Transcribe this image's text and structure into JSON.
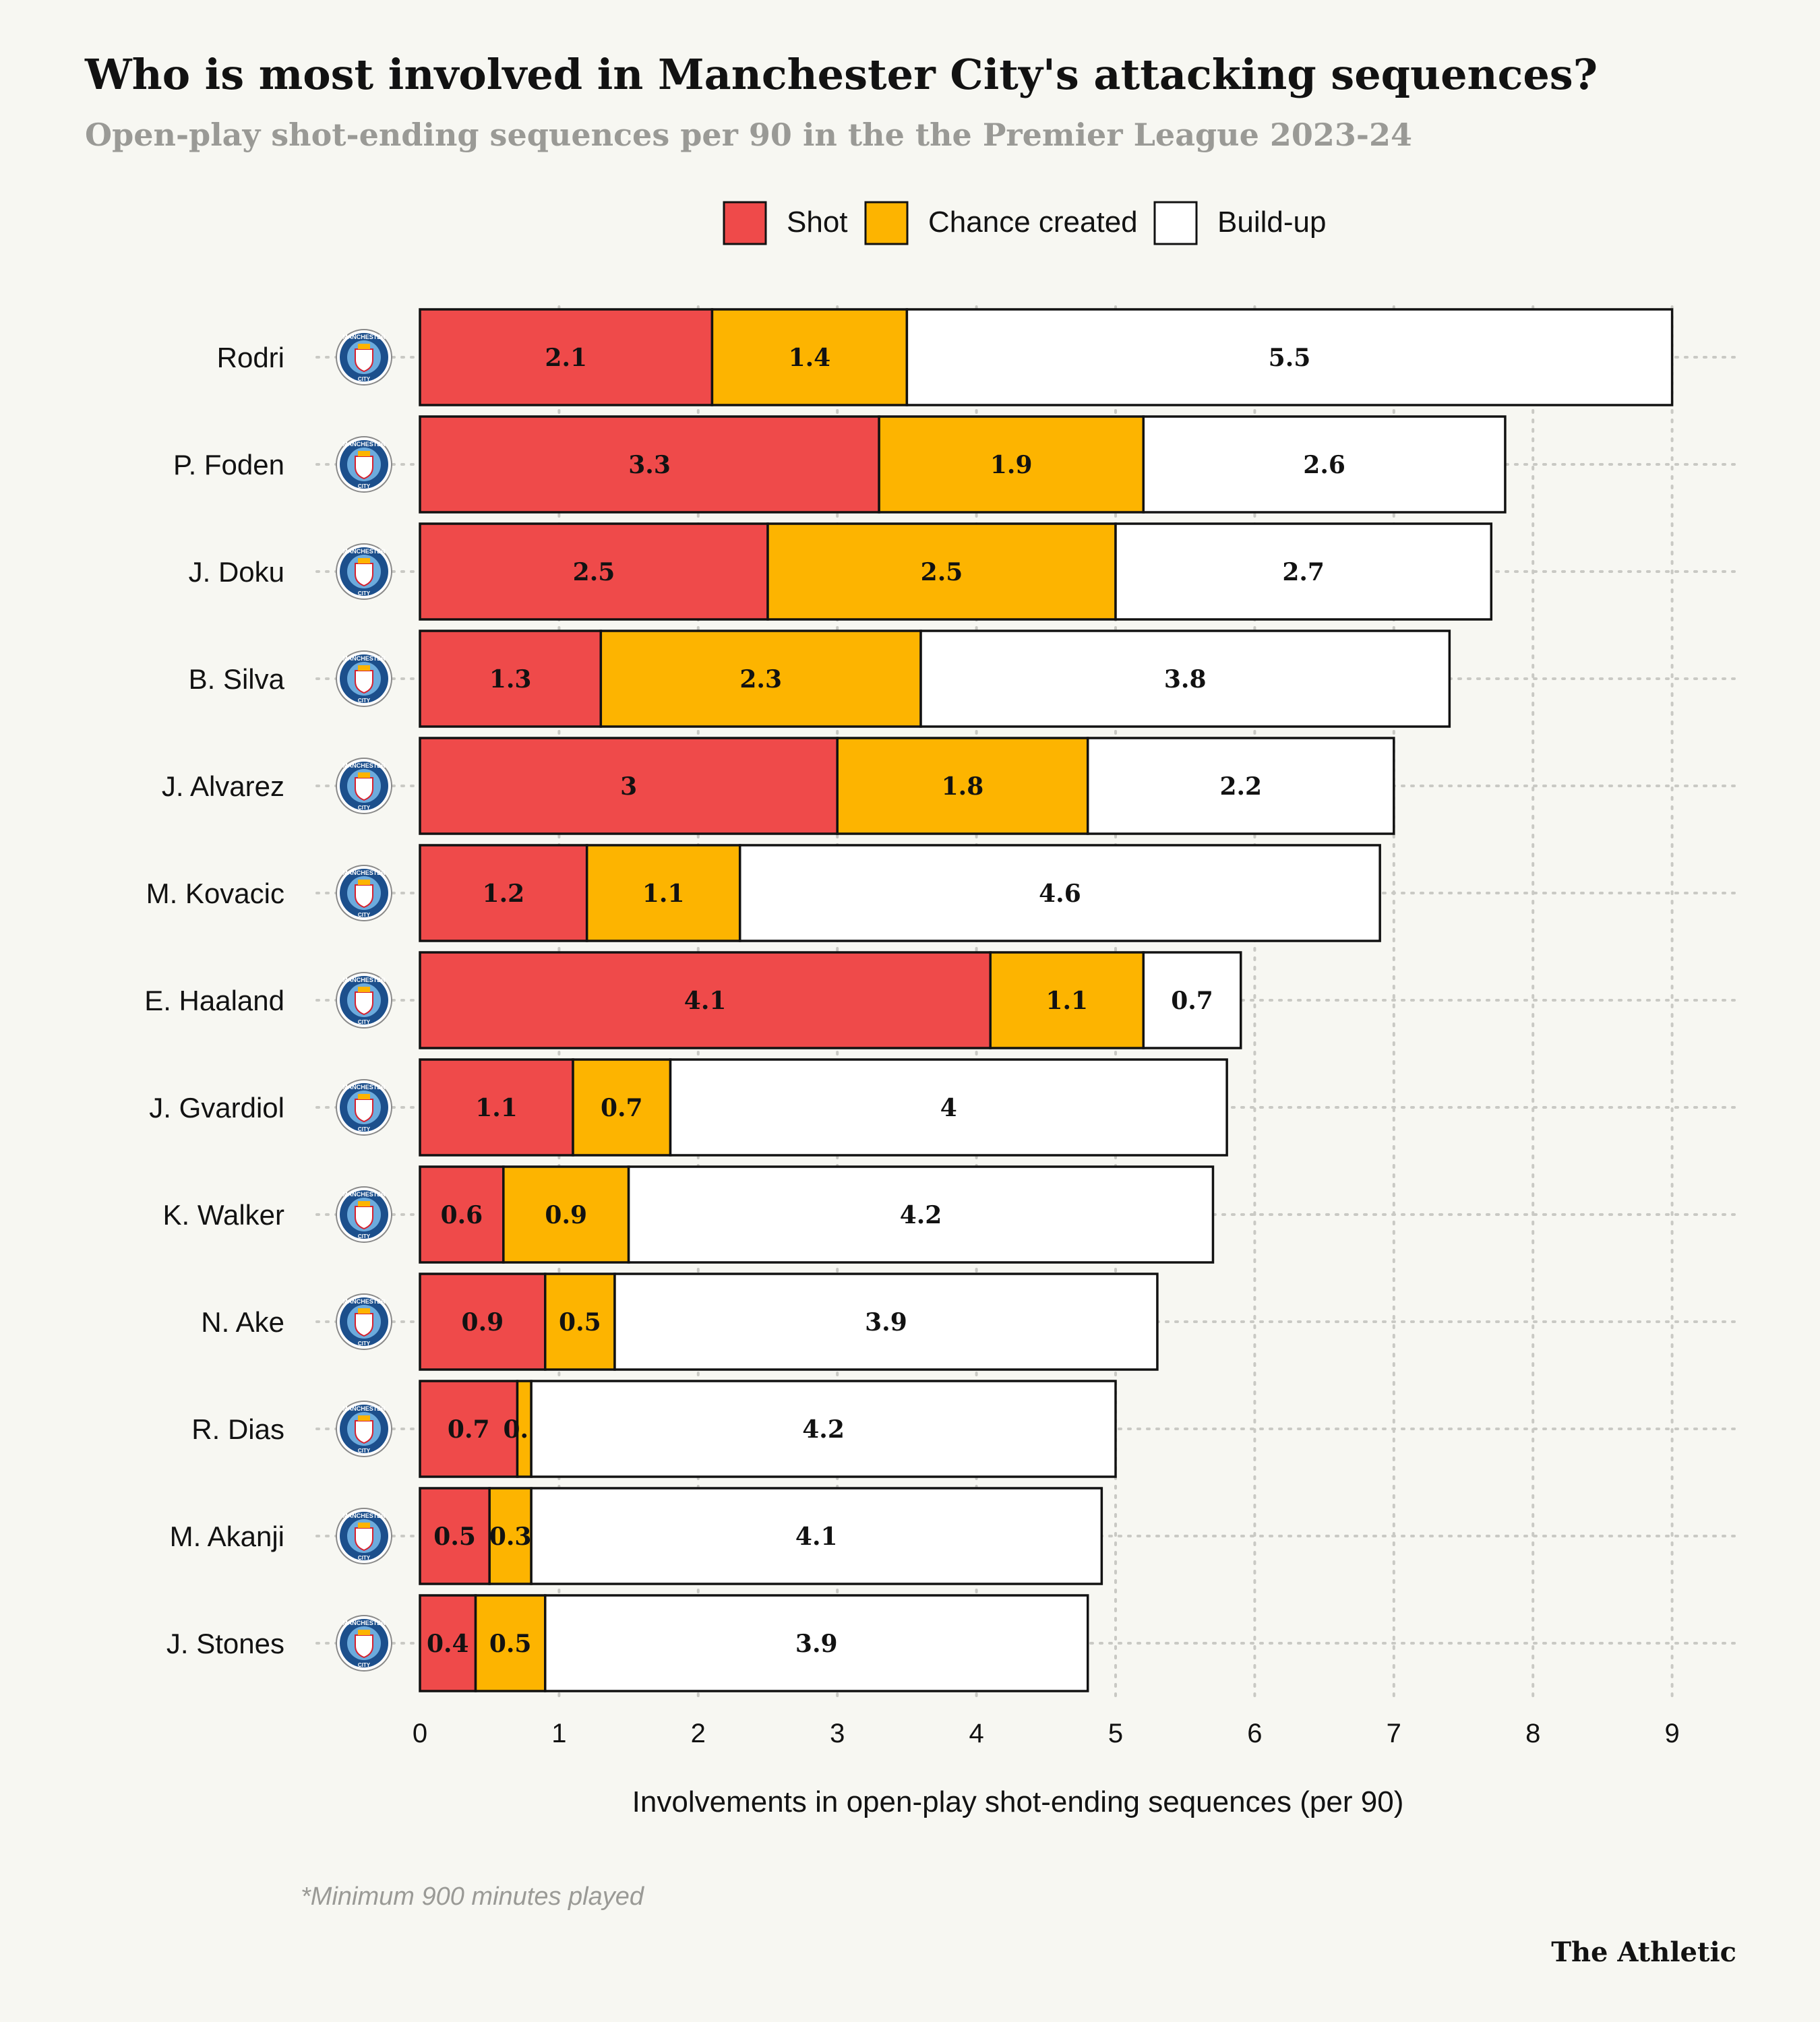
{
  "title": "Who is most involved in Manchester City's attacking sequences?",
  "subtitle": "Open-play shot-ending sequences per 90 in the the Premier League 2023-24",
  "footnote": "*Minimum 900 minutes played",
  "brand": "The Athletic",
  "club_badge": {
    "text_top": "MANCHESTER",
    "text_bottom": "CITY"
  },
  "colors": {
    "background": "#f7f7f2",
    "shot": "#ef4a4a",
    "chance_created": "#fdb400",
    "build_up": "#ffffff",
    "badge_blue": "#1c4f8c",
    "badge_light": "#6cabdd"
  },
  "chart_data": {
    "type": "bar",
    "orientation": "horizontal",
    "stacked": true,
    "categories": [
      "Rodri",
      "P. Foden",
      "J. Doku",
      "B. Silva",
      "J. Alvarez",
      "M. Kovacic",
      "E. Haaland",
      "J. Gvardiol",
      "K. Walker",
      "N. Ake",
      "R. Dias",
      "M. Akanji",
      "J. Stones"
    ],
    "series": [
      {
        "name": "Shot",
        "color": "#ef4a4a",
        "values": [
          2.1,
          3.3,
          2.5,
          1.3,
          3,
          1.2,
          4.1,
          1.1,
          0.6,
          0.9,
          0.7,
          0.5,
          0.4
        ]
      },
      {
        "name": "Chance created",
        "color": "#fdb400",
        "values": [
          1.4,
          1.9,
          2.5,
          2.3,
          1.8,
          1.1,
          1.1,
          0.7,
          0.9,
          0.5,
          0.1,
          0.3,
          0.5
        ]
      },
      {
        "name": "Build-up",
        "color": "#ffffff",
        "values": [
          5.5,
          2.6,
          2.7,
          3.8,
          2.2,
          4.6,
          0.7,
          4,
          4.2,
          3.9,
          4.2,
          4.1,
          3.9
        ]
      }
    ],
    "xlabel": "Involvements in open-play shot-ending sequences (per 90)",
    "ylabel": "",
    "xlim": [
      0,
      9
    ],
    "xticks": [
      "0",
      "1",
      "2",
      "3",
      "4",
      "5",
      "6",
      "7",
      "8",
      "9"
    ],
    "grid": "dotted vertical and horizontal",
    "legend": "top-center"
  }
}
